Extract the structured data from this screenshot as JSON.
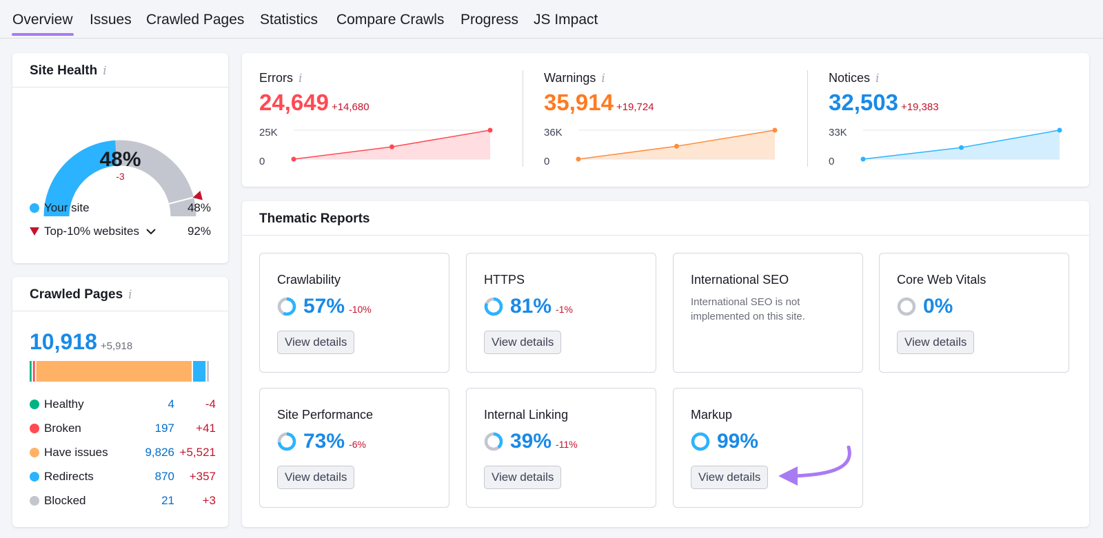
{
  "tabs": [
    "Overview",
    "Issues",
    "Crawled Pages",
    "Statistics",
    "Compare Crawls",
    "Progress",
    "JS Impact"
  ],
  "site_health": {
    "title": "Site Health",
    "info_icon": "i",
    "value": "48%",
    "value_fraction": 0.48,
    "delta": "-3",
    "top10_fraction": 0.92,
    "legend": [
      {
        "label": "Your site",
        "value": "48%",
        "color": "#2bb3ff"
      },
      {
        "label": "Top-10% websites",
        "value": "92%",
        "color": "#c4142c"
      }
    ],
    "colors": {
      "filled": "#2bb3ff",
      "empty": "#c4c6cf",
      "marker": "#c4142c"
    }
  },
  "crawled_pages": {
    "title": "Crawled Pages",
    "info_icon": "i",
    "total": "10,918",
    "total_delta": "+5,918",
    "rows": [
      {
        "label": "Healthy",
        "value": "4",
        "delta": "-4",
        "count": 4,
        "color": "#00b386"
      },
      {
        "label": "Broken",
        "value": "197",
        "delta": "+41",
        "count": 197,
        "color": "#ff4953"
      },
      {
        "label": "Have issues",
        "value": "9,826",
        "delta": "+5,521",
        "count": 9826,
        "color": "#ffb266"
      },
      {
        "label": "Redirects",
        "value": "870",
        "delta": "+357",
        "count": 870,
        "color": "#2bb3ff"
      },
      {
        "label": "Blocked",
        "value": "21",
        "delta": "+3",
        "count": 21,
        "color": "#c4c6cf"
      }
    ]
  },
  "issues": {
    "info_icon": "i",
    "metrics": [
      {
        "label": "Errors",
        "value": "24,649",
        "delta": "+14,680",
        "ymax_label": "25K",
        "ymin_label": "0",
        "color": "#ff4953",
        "fill": "#ffdde0",
        "points": [
          0,
          10500,
          24649
        ]
      },
      {
        "label": "Warnings",
        "value": "35,914",
        "delta": "+19,724",
        "ymax_label": "36K",
        "ymin_label": "0",
        "color": "#ff8c3b",
        "fill": "#ffe6d2",
        "points": [
          0,
          16000,
          35914
        ]
      },
      {
        "label": "Notices",
        "value": "32,503",
        "delta": "+19,383",
        "ymax_label": "33K",
        "ymin_label": "0",
        "color": "#2bb3ff",
        "fill": "#d3efff",
        "points": [
          0,
          13000,
          32503
        ]
      }
    ]
  },
  "thematic": {
    "title": "Thematic Reports",
    "button_label": "View details",
    "reports": [
      {
        "title": "Crawlability",
        "pct": "57%",
        "delta": "-10%",
        "fraction": 0.57
      },
      {
        "title": "HTTPS",
        "pct": "81%",
        "delta": "-1%",
        "fraction": 0.81
      },
      {
        "title": "International SEO",
        "note": "International SEO is not implemented on this site."
      },
      {
        "title": "Core Web Vitals",
        "pct": "0%",
        "delta": "",
        "fraction": 0
      },
      {
        "title": "Site Performance",
        "pct": "73%",
        "delta": "-6%",
        "fraction": 0.73
      },
      {
        "title": "Internal Linking",
        "pct": "39%",
        "delta": "-11%",
        "fraction": 0.39
      },
      {
        "title": "Markup",
        "pct": "99%",
        "delta": "",
        "fraction": 0.99
      }
    ],
    "ring_colors": {
      "filled": "#2bb3ff",
      "empty": "#c4c6cf"
    },
    "arrow_color": "#a97bf3"
  }
}
